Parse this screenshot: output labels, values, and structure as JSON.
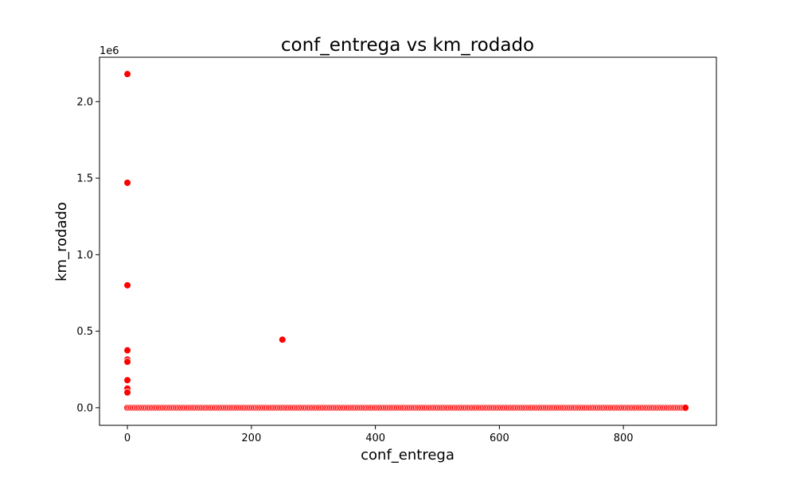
{
  "chart_data": {
    "type": "scatter",
    "title": "conf_entrega vs km_rodado",
    "xlabel": "conf_entrega",
    "ylabel": "km_rodado",
    "y_offset_label": "1e6",
    "xlim": [
      -45,
      950
    ],
    "ylim": [
      -115000,
      2290000
    ],
    "xticks": [
      0,
      200,
      400,
      600,
      800
    ],
    "xtick_labels": [
      "0",
      "200",
      "400",
      "600",
      "800"
    ],
    "yticks": [
      0,
      500000,
      1000000,
      1500000,
      2000000
    ],
    "ytick_labels": [
      "0.0",
      "0.5",
      "1.0",
      "1.5",
      "2.0"
    ],
    "grid": false,
    "marker_color": "#ff0000",
    "marker_edge_color": "#ffffff",
    "series": [
      {
        "points": [
          [
            0,
            2180000
          ],
          [
            0,
            1470000
          ],
          [
            0,
            800000
          ],
          [
            0,
            375000
          ],
          [
            0,
            315000
          ],
          [
            0,
            300000
          ],
          [
            0,
            180000
          ],
          [
            0,
            125000
          ],
          [
            0,
            100000
          ],
          [
            250,
            445000
          ]
        ],
        "baseline": {
          "y": 0,
          "x_start": 0,
          "x_end": 900,
          "x_step": 3
        }
      }
    ]
  }
}
